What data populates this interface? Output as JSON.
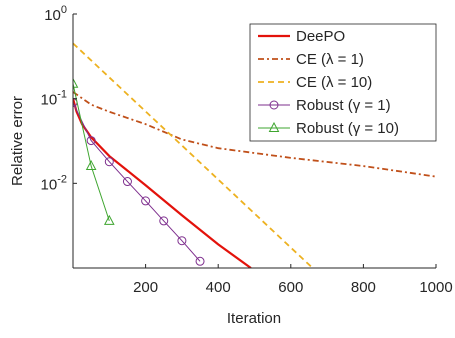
{
  "chart_data": {
    "type": "line",
    "log_y": true,
    "x_label": "Iteration",
    "y_label": "Relative error",
    "xlim": [
      0,
      1000
    ],
    "xticks": [
      200,
      400,
      600,
      800,
      1000
    ],
    "ylim": [
      0.001,
      1
    ],
    "yticks": [
      {
        "value": 1,
        "label": "10^0"
      },
      {
        "value": 0.1,
        "label": "10^-1"
      },
      {
        "value": 0.01,
        "label": "10^-2"
      }
    ],
    "legend": "upper right",
    "series": [
      {
        "name": "DeePO",
        "color": "#e3120b",
        "dash": "solid",
        "width": 2.2,
        "x": [
          0,
          10,
          25,
          50,
          100,
          200,
          300,
          400,
          490
        ],
        "values": [
          0.1,
          0.07,
          0.05,
          0.035,
          0.021,
          0.0095,
          0.0042,
          0.0019,
          0.001
        ]
      },
      {
        "name": "CE (λ = 1)",
        "color": "#c0501a",
        "dash": "dashdot",
        "width": 1.8,
        "x": [
          0,
          50,
          100,
          200,
          300,
          400,
          600,
          800,
          1000
        ],
        "values": [
          0.12,
          0.085,
          0.07,
          0.05,
          0.033,
          0.026,
          0.02,
          0.016,
          0.012
        ]
      },
      {
        "name": "CE (λ = 10)",
        "color": "#edb120",
        "dash": "dashed",
        "width": 1.8,
        "x": [
          0,
          660
        ],
        "values": [
          0.45,
          0.001
        ]
      },
      {
        "name": "Robust (γ = 1)",
        "color": "#7e2f8e",
        "dash": "solid",
        "width": 1,
        "marker": "circle",
        "x": [
          0,
          50,
          100,
          150,
          200,
          250,
          300,
          350
        ],
        "values": [
          0.09,
          0.032,
          0.018,
          0.0105,
          0.0062,
          0.0036,
          0.0021,
          0.0012
        ]
      },
      {
        "name": "Robust (γ = 10)",
        "color": "#3ea52f",
        "dash": "solid",
        "width": 1,
        "marker": "triangle",
        "x": [
          0,
          50,
          100
        ],
        "values": [
          0.15,
          0.016,
          0.0036
        ]
      }
    ]
  }
}
